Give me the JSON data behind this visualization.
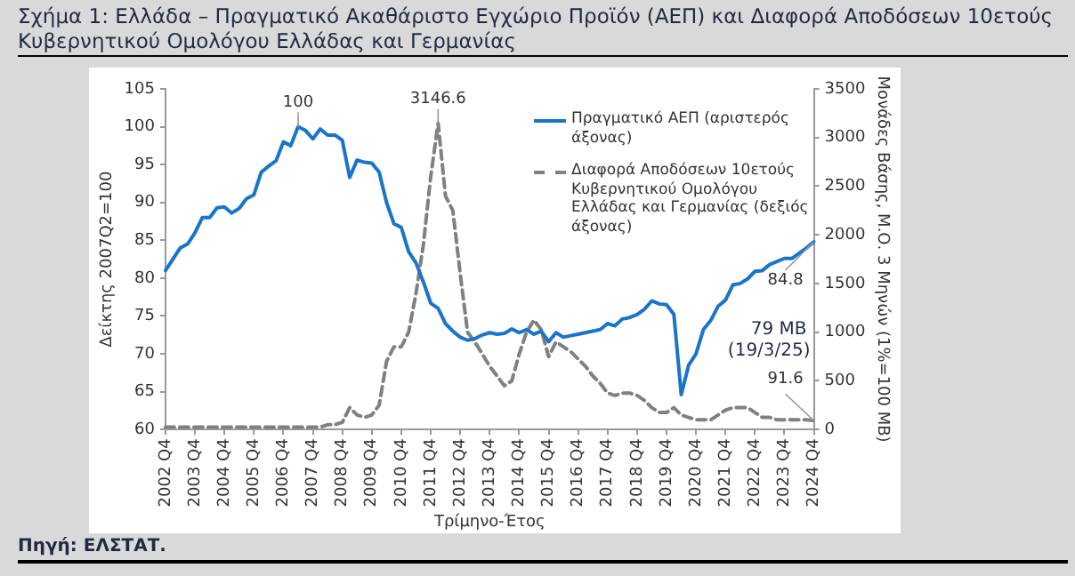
{
  "chart_data": {
    "type": "line",
    "title": "Σχήμα 1: Ελλάδα – Πραγματικό Ακαθάριστο Εγχώριο Προϊόν (ΑΕΠ) και Διαφορά Αποδόσεων 10ετούς Κυβερνητικού Ομολόγου Ελλάδας και Γερμανίας",
    "xlabel": "Τρίμηνο-Έτος",
    "ylabel": "Δείκτης 2007Q2=100",
    "y2label": "Μονάδες Βάσης, Μ.Ο. 3 Μηνών (1%=100 ΜΒ)",
    "categories": [
      "2002 Q4",
      null,
      null,
      null,
      "2003 Q4",
      null,
      null,
      null,
      "2004 Q4",
      null,
      null,
      null,
      "2005 Q4",
      null,
      null,
      null,
      "2006 Q4",
      null,
      null,
      null,
      "2007 Q4",
      null,
      null,
      null,
      "2008 Q4",
      null,
      null,
      null,
      "2009 Q4",
      null,
      null,
      null,
      "2010 Q4",
      null,
      null,
      null,
      "2011 Q4",
      null,
      null,
      null,
      "2012 Q4",
      null,
      null,
      null,
      "2013 Q4",
      null,
      null,
      null,
      "2014 Q4",
      null,
      null,
      null,
      "2015 Q4",
      null,
      null,
      null,
      "2016 Q4",
      null,
      null,
      null,
      "2017 Q4",
      null,
      null,
      null,
      "2018 Q4",
      null,
      null,
      null,
      "2019 Q4",
      null,
      null,
      null,
      "2020 Q4",
      null,
      null,
      null,
      "2021 Q4",
      null,
      null,
      null,
      "2022 Q4",
      null,
      null,
      null,
      "2023 Q4",
      null,
      null,
      null,
      "2024 Q4"
    ],
    "series": [
      {
        "name": "Πραγματικό ΑΕΠ (αριστερός άξονας)",
        "color": "#1a75c9",
        "line_style": "solid",
        "values": [
          81,
          82.5,
          84,
          84.5,
          86,
          88,
          88,
          89.3,
          89.4,
          88.6,
          89.2,
          90.5,
          91,
          94,
          94.8,
          95.5,
          98,
          97.5,
          100,
          99.5,
          98.4,
          99.7,
          98.9,
          98.9,
          98.2,
          93.3,
          95.6,
          95.3,
          95.2,
          94,
          90,
          87.2,
          86.7,
          83.5,
          82,
          79.5,
          76.7,
          76,
          74,
          73,
          72.2,
          71.8,
          72,
          72.5,
          72.8,
          72.6,
          72.7,
          73.3,
          72.8,
          73.2,
          72.6,
          73,
          71.6,
          72.8,
          72.2,
          72.4,
          72.6,
          72.8,
          73,
          73.2,
          74,
          73.7,
          74.6,
          74.8,
          75.2,
          75.9,
          77,
          76.6,
          76.5,
          75.2,
          64.6,
          68.5,
          70,
          73.2,
          74.4,
          76.3,
          77.1,
          79.1,
          79.3,
          79.9,
          80.9,
          81,
          81.8,
          82.2,
          82.6,
          82.6,
          83.3,
          84,
          84.8
        ],
        "value_labels": [
          null,
          null,
          null,
          null,
          null,
          null,
          null,
          null,
          null,
          null,
          null,
          null,
          null,
          null,
          null,
          null,
          null,
          null,
          "100",
          null,
          null,
          null,
          null,
          null,
          null,
          null,
          null,
          null,
          null,
          null,
          null,
          null,
          null,
          null,
          null,
          null,
          null,
          null,
          null,
          null,
          null,
          null,
          null,
          null,
          null,
          null,
          null,
          null,
          null,
          null,
          null,
          null,
          null,
          null,
          null,
          null,
          null,
          null,
          null,
          null,
          null,
          null,
          null,
          null,
          null,
          null,
          null,
          null,
          null,
          null,
          null,
          null,
          null,
          null,
          null,
          null,
          null,
          null,
          null,
          null,
          null,
          null,
          null,
          null,
          null,
          null,
          null,
          null,
          "84.8"
        ]
      },
      {
        "name": "Διαφορά Αποδόσεων 10ετούς Κυβερνητικού Ομολόγου Ελλάδας και Γερμανίας (δεξιός άξονας)",
        "color": "#808080",
        "line_style": "dashed",
        "axis": "y2",
        "values": [
          25,
          25,
          25,
          25,
          25,
          25,
          25,
          25,
          25,
          25,
          25,
          25,
          25,
          25,
          25,
          25,
          25,
          25,
          25,
          25,
          25,
          25,
          50,
          50,
          75,
          225,
          150,
          125,
          150,
          250,
          700,
          850,
          850,
          1000,
          1400,
          1900,
          2600,
          3146.6,
          2400,
          2250,
          1600,
          1000,
          900,
          775,
          650,
          550,
          450,
          500,
          775,
          1000,
          1125,
          1025,
          750,
          900,
          850,
          800,
          725,
          650,
          550,
          475,
          375,
          350,
          375,
          375,
          350,
          300,
          225,
          175,
          175,
          225,
          150,
          125,
          100,
          100,
          100,
          150,
          200,
          225,
          225,
          225,
          175,
          125,
          125,
          100,
          100,
          100,
          100,
          100,
          91.6
        ],
        "value_labels": [
          null,
          null,
          null,
          null,
          null,
          null,
          null,
          null,
          null,
          null,
          null,
          null,
          null,
          null,
          null,
          null,
          null,
          null,
          null,
          null,
          null,
          null,
          null,
          null,
          null,
          null,
          null,
          null,
          null,
          null,
          null,
          null,
          null,
          null,
          null,
          null,
          null,
          "3146.6",
          null,
          null,
          null,
          null,
          null,
          null,
          null,
          null,
          null,
          null,
          null,
          null,
          null,
          null,
          null,
          null,
          null,
          null,
          null,
          null,
          null,
          null,
          null,
          null,
          null,
          null,
          null,
          null,
          null,
          null,
          null,
          null,
          null,
          null,
          null,
          null,
          null,
          null,
          null,
          null,
          null,
          null,
          null,
          null,
          null,
          null,
          null,
          null,
          null,
          null,
          "91.6"
        ]
      }
    ],
    "ylim": [
      60,
      105
    ],
    "yticks": [
      60,
      65,
      70,
      75,
      80,
      85,
      90,
      95,
      100,
      105
    ],
    "y2lim": [
      0,
      3500
    ],
    "y2ticks": [
      0,
      500,
      1000,
      1500,
      2000,
      2500,
      3000,
      3500
    ],
    "legend": "top right",
    "marker": "none",
    "grid": false,
    "annotations": [
      "79 ΜΒ (19/3/25)",
      "Πηγή: ΕΛΣΤΑΤ."
    ]
  }
}
